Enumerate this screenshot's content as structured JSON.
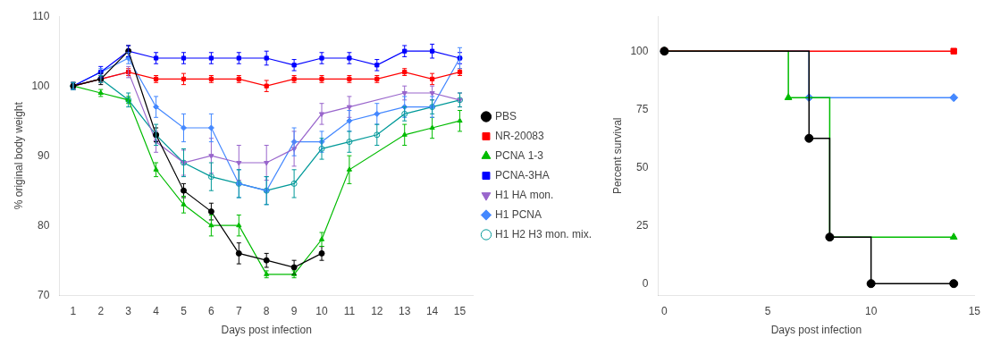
{
  "chart_data": [
    {
      "type": "line",
      "xlabel": "Days post infection",
      "ylabel": "% original body weight",
      "x": [
        1,
        2,
        3,
        4,
        5,
        6,
        7,
        8,
        9,
        10,
        11,
        12,
        13,
        14,
        15
      ],
      "xlim": [
        0.5,
        15.5
      ],
      "xticks": [
        1,
        2,
        3,
        4,
        5,
        6,
        7,
        8,
        9,
        10,
        11,
        12,
        13,
        14,
        15
      ],
      "ylim": [
        70,
        110
      ],
      "yticks": [
        70,
        80,
        90,
        100,
        110
      ],
      "grid": false,
      "legend": "right",
      "series": [
        {
          "name": "PBS",
          "color": "#000000",
          "marker": "circle",
          "values": [
            100,
            101,
            105,
            93,
            85,
            82,
            76,
            75,
            74,
            76,
            null,
            null,
            null,
            null,
            null
          ],
          "yerr": [
            0.5,
            0.8,
            0.8,
            1.0,
            1.0,
            1.2,
            1.5,
            1.0,
            1.0,
            1.0,
            null,
            null,
            null,
            null,
            null
          ]
        },
        {
          "name": "NR-20083",
          "color": "#ff0000",
          "marker": "square",
          "values": [
            100,
            101,
            102,
            101,
            101,
            101,
            101,
            100,
            101,
            101,
            101,
            101,
            102,
            101,
            102
          ],
          "yerr": [
            0.5,
            0.5,
            0.5,
            0.5,
            0.8,
            0.5,
            0.5,
            0.8,
            0.5,
            0.5,
            0.5,
            0.5,
            0.5,
            0.8,
            0.5
          ]
        },
        {
          "name": "PCNA 1-3",
          "color": "#00bb00",
          "marker": "triangle-up",
          "values": [
            100,
            99,
            98,
            88,
            83,
            80,
            80,
            73,
            73,
            78,
            88,
            null,
            93,
            94,
            95
          ],
          "yerr": [
            0.5,
            0.5,
            0.5,
            1.0,
            1.2,
            1.5,
            1.5,
            0.5,
            0.5,
            1.0,
            2.0,
            null,
            1.5,
            1.5,
            1.5
          ]
        },
        {
          "name": "PCNA-3HA",
          "color": "#0000ff",
          "marker": "square",
          "values": [
            100,
            102,
            105,
            104,
            104,
            104,
            104,
            104,
            103,
            104,
            104,
            103,
            105,
            105,
            104
          ],
          "yerr": [
            0.5,
            0.8,
            0.8,
            0.8,
            0.8,
            0.8,
            0.8,
            1.0,
            0.8,
            0.8,
            0.8,
            0.8,
            0.8,
            1.0,
            0.8
          ]
        },
        {
          "name": "H1 HA mon.",
          "color": "#9966cc",
          "marker": "triangle-down",
          "values": [
            100,
            101,
            102,
            92,
            89,
            90,
            89,
            89,
            91,
            96,
            97,
            null,
            99,
            99,
            98
          ],
          "yerr": [
            0.5,
            0.5,
            0.8,
            1.5,
            1.8,
            2.5,
            2.5,
            2.5,
            2.5,
            1.5,
            1.5,
            null,
            1.0,
            1.0,
            1.0
          ]
        },
        {
          "name": "H1 PCNA",
          "color": "#4488ff",
          "marker": "diamond",
          "values": [
            100,
            102,
            104,
            97,
            94,
            94,
            86,
            85,
            92,
            92,
            95,
            96,
            97,
            97,
            104
          ],
          "yerr": [
            0.5,
            0.5,
            0.8,
            1.5,
            2.0,
            2.0,
            2.0,
            2.0,
            2.0,
            1.5,
            1.5,
            1.5,
            1.5,
            1.5,
            1.5
          ]
        },
        {
          "name": "H1 H2 H3 mon. mix.",
          "color": "#009999",
          "marker": "open-circle",
          "values": [
            100,
            101,
            98,
            93,
            89,
            87,
            86,
            85,
            86,
            91,
            92,
            93,
            96,
            97,
            98
          ],
          "yerr": [
            0.5,
            0.5,
            1.0,
            1.5,
            2.0,
            2.0,
            2.0,
            2.0,
            2.0,
            1.5,
            1.5,
            1.5,
            1.0,
            1.0,
            1.0
          ]
        }
      ]
    },
    {
      "type": "step",
      "xlabel": "Days post infection",
      "ylabel": "Percent survival",
      "xlim": [
        -0.3,
        15
      ],
      "xticks": [
        0,
        5,
        10,
        15
      ],
      "ylim": [
        -5,
        115
      ],
      "yticks": [
        0,
        25,
        50,
        75,
        100
      ],
      "grid": false,
      "series": [
        {
          "name": "PBS",
          "color": "#000000",
          "marker": "circle",
          "x": [
            0,
            7,
            7,
            8,
            8,
            10,
            10,
            14
          ],
          "values": [
            100,
            100,
            62.5,
            62.5,
            20,
            20,
            0,
            0
          ]
        },
        {
          "name": "NR-20083",
          "color": "#ff0000",
          "marker": "square",
          "x": [
            0,
            8,
            14
          ],
          "values": [
            100,
            100,
            100
          ]
        },
        {
          "name": "PCNA 1-3",
          "color": "#00bb00",
          "marker": "triangle-up",
          "x": [
            0,
            6,
            6,
            8,
            8,
            14
          ],
          "values": [
            100,
            100,
            80,
            80,
            20,
            20
          ]
        },
        {
          "name": "H1 PCNA",
          "color": "#4488ff",
          "marker": "diamond",
          "x": [
            0,
            7,
            7,
            14
          ],
          "values": [
            100,
            100,
            80,
            80
          ]
        }
      ]
    }
  ]
}
